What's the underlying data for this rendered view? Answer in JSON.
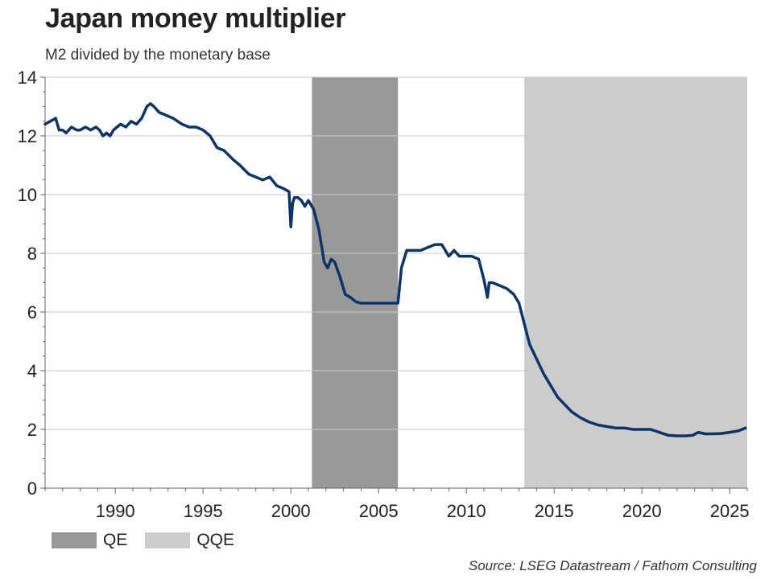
{
  "chart_data": {
    "type": "line",
    "title": "Japan money multiplier",
    "subtitle": "M2 divided by the monetary base",
    "source": "Source: LSEG Datastream / Fathom Consulting",
    "xlim": [
      1986,
      2026
    ],
    "ylim": [
      0,
      14
    ],
    "yticks": [
      "0",
      "2",
      "4",
      "6",
      "8",
      "10",
      "12",
      "14"
    ],
    "xticks": [
      "1990",
      "1995",
      "2000",
      "2005",
      "2010",
      "2015",
      "2020",
      "2025"
    ],
    "grid": "horizontal",
    "line_color": "#0d3466",
    "shaded_periods": [
      {
        "name": "QE",
        "start": 2001.2,
        "end": 2006.1,
        "color": "#999999"
      },
      {
        "name": "QQE",
        "start": 2013.3,
        "end": 2026,
        "color": "#cccccc"
      }
    ],
    "legend": {
      "placement": "bottom-left",
      "entries": [
        "QE",
        "QQE"
      ]
    },
    "series": [
      {
        "x": [
          1986.0,
          1986.3,
          1986.6,
          1986.8,
          1987.0,
          1987.2,
          1987.5,
          1987.8,
          1988.0,
          1988.3,
          1988.6,
          1988.9,
          1989.1,
          1989.3,
          1989.5,
          1989.7,
          1989.9,
          1990.1,
          1990.3,
          1990.6,
          1990.9,
          1991.2,
          1991.5,
          1991.8,
          1992.0,
          1992.2,
          1992.5,
          1992.9,
          1993.3,
          1993.8,
          1994.2,
          1994.6,
          1995.0,
          1995.4,
          1995.8,
          1996.2,
          1996.7,
          1997.1,
          1997.6,
          1998.0,
          1998.4,
          1998.8,
          1999.2,
          1999.6,
          1999.9,
          2000.0,
          2000.1,
          2000.2,
          2000.4,
          2000.6,
          2000.8,
          2001.0,
          2001.3,
          2001.6,
          2001.9,
          2002.1,
          2002.3,
          2002.5,
          2002.8,
          2003.1,
          2003.4,
          2003.7,
          2004.0,
          2004.3,
          2004.7,
          2005.1,
          2005.5,
          2005.8,
          2006.1,
          2006.3,
          2006.6,
          2007.0,
          2007.4,
          2007.8,
          2008.2,
          2008.6,
          2009.0,
          2009.3,
          2009.6,
          2009.9,
          2010.3,
          2010.7,
          2011.0,
          2011.2,
          2011.3,
          2011.5,
          2011.9,
          2012.3,
          2012.7,
          2013.0,
          2013.3,
          2013.6,
          2014.0,
          2014.4,
          2014.8,
          2015.2,
          2015.6,
          2016.0,
          2016.5,
          2017.0,
          2017.5,
          2018.0,
          2018.5,
          2019.0,
          2019.5,
          2020.0,
          2020.5,
          2021.0,
          2021.5,
          2022.0,
          2022.5,
          2022.9,
          2023.2,
          2023.6,
          2024.0,
          2024.5,
          2025.0,
          2025.5,
          2025.9
        ],
        "values": [
          12.4,
          12.5,
          12.6,
          12.2,
          12.2,
          12.1,
          12.3,
          12.2,
          12.2,
          12.3,
          12.2,
          12.3,
          12.2,
          12.0,
          12.1,
          12.0,
          12.2,
          12.3,
          12.4,
          12.3,
          12.5,
          12.4,
          12.6,
          13.0,
          13.1,
          13.0,
          12.8,
          12.7,
          12.6,
          12.4,
          12.3,
          12.3,
          12.2,
          12.0,
          11.6,
          11.5,
          11.2,
          11.0,
          10.7,
          10.6,
          10.5,
          10.6,
          10.3,
          10.2,
          10.1,
          8.9,
          9.7,
          9.9,
          9.9,
          9.8,
          9.6,
          9.8,
          9.5,
          8.8,
          7.7,
          7.5,
          7.8,
          7.7,
          7.2,
          6.6,
          6.5,
          6.35,
          6.3,
          6.3,
          6.3,
          6.3,
          6.3,
          6.3,
          6.3,
          7.5,
          8.1,
          8.1,
          8.1,
          8.2,
          8.3,
          8.3,
          7.9,
          8.1,
          7.9,
          7.9,
          7.9,
          7.8,
          7.1,
          6.5,
          7.0,
          7.0,
          6.9,
          6.8,
          6.6,
          6.3,
          5.6,
          4.9,
          4.4,
          3.9,
          3.5,
          3.1,
          2.85,
          2.6,
          2.4,
          2.25,
          2.15,
          2.1,
          2.05,
          2.05,
          2.0,
          2.0,
          2.0,
          1.9,
          1.8,
          1.78,
          1.78,
          1.8,
          1.9,
          1.85,
          1.85,
          1.86,
          1.9,
          1.95,
          2.05
        ]
      }
    ]
  }
}
